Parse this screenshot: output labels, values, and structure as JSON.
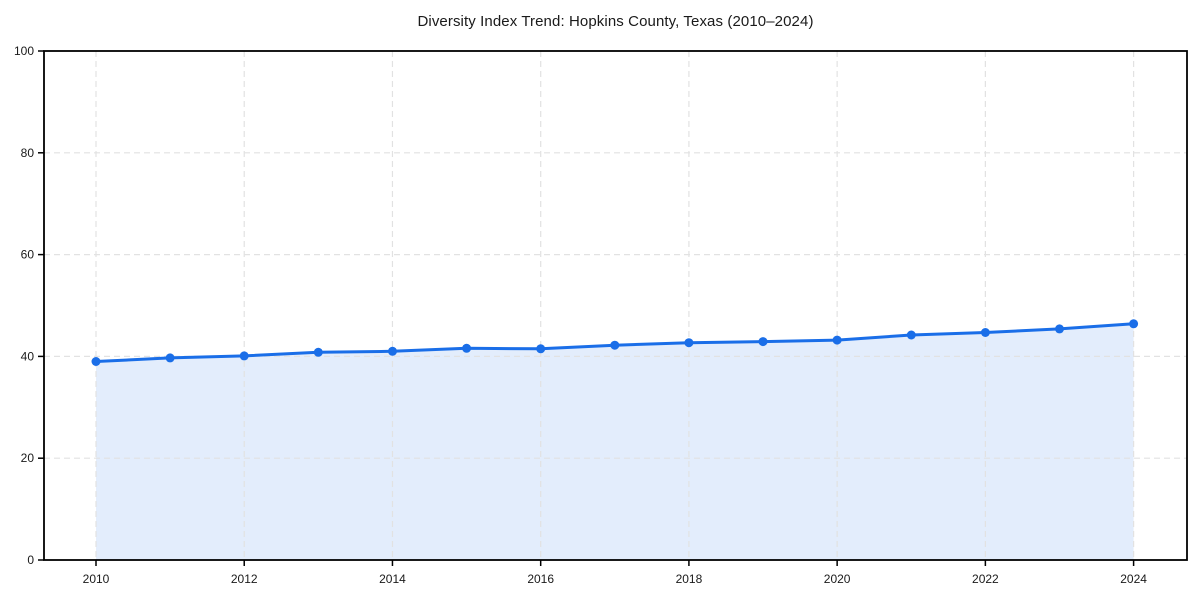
{
  "page": {
    "background_color": "#ffffff"
  },
  "chart_data": {
    "type": "area",
    "title": "Diversity Index Trend: Hopkins County, Texas (2010–2024)",
    "x": [
      2010,
      2011,
      2012,
      2013,
      2014,
      2015,
      2016,
      2017,
      2018,
      2019,
      2020,
      2021,
      2022,
      2023,
      2024
    ],
    "values": [
      39.0,
      39.7,
      40.1,
      40.8,
      41.0,
      41.6,
      41.5,
      42.2,
      42.7,
      42.9,
      43.2,
      44.2,
      44.7,
      45.4,
      46.4
    ],
    "xlabel": "",
    "ylabel": "",
    "ylim": [
      0,
      100
    ],
    "yticks": [
      0,
      20,
      40,
      60,
      80,
      100
    ],
    "xticks": [
      2010,
      2012,
      2014,
      2016,
      2018,
      2020,
      2022,
      2024
    ],
    "grid": {
      "visible": true,
      "style": "dashed",
      "color": "#e2e2e2"
    },
    "legend": "none",
    "marker": "circle",
    "colors": {
      "line": "#1a6ee8",
      "fill": "#1a6ee8",
      "fill_opacity": 0.12,
      "axis": "#000000",
      "text": "#1a1a1a"
    }
  }
}
